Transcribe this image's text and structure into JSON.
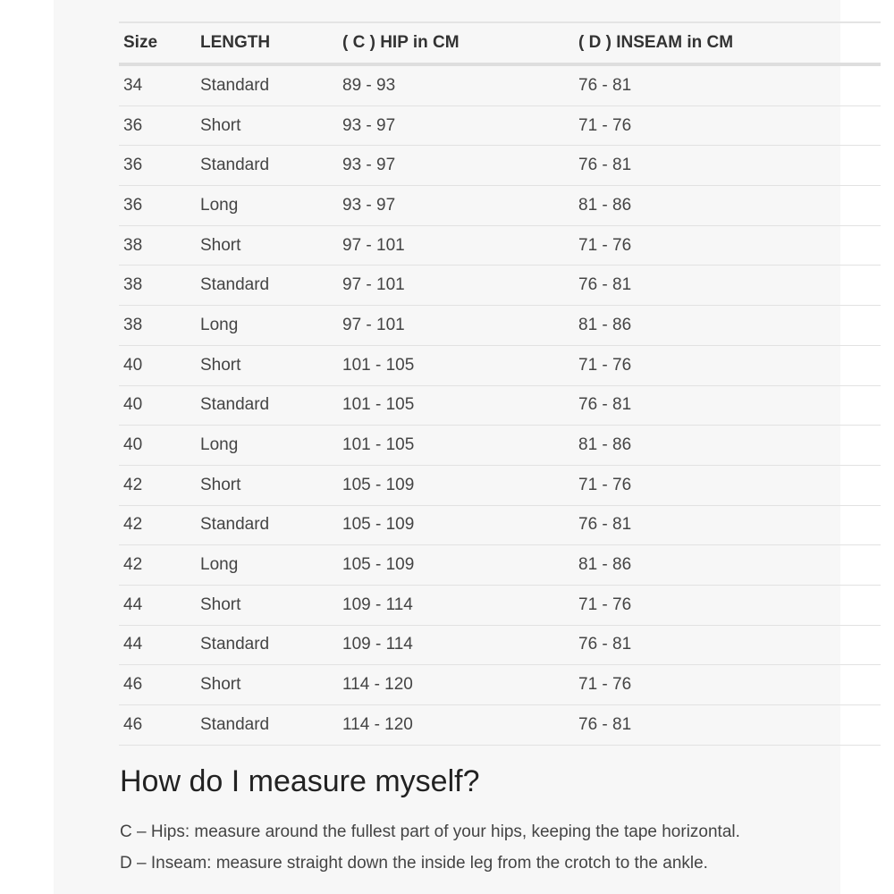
{
  "table": {
    "headers": [
      "Size",
      "LENGTH",
      "( C ) HIP in CM",
      "( D ) INSEAM in CM"
    ],
    "rows": [
      [
        "34",
        "Standard",
        "89 - 93",
        "76 - 81"
      ],
      [
        "36",
        "Short",
        "93 - 97",
        "71 - 76"
      ],
      [
        "36",
        "Standard",
        "93 - 97",
        "76 - 81"
      ],
      [
        "36",
        "Long",
        "93 - 97",
        "81 - 86"
      ],
      [
        "38",
        "Short",
        "97 - 101",
        "71 - 76"
      ],
      [
        "38",
        "Standard",
        "97 - 101",
        "76 - 81"
      ],
      [
        "38",
        "Long",
        "97 - 101",
        "81 - 86"
      ],
      [
        "40",
        "Short",
        "101 - 105",
        "71 - 76"
      ],
      [
        "40",
        "Standard",
        "101 - 105",
        "76 - 81"
      ],
      [
        "40",
        "Long",
        "101 - 105",
        "81 - 86"
      ],
      [
        "42",
        "Short",
        "105 - 109",
        "71 - 76"
      ],
      [
        "42",
        "Standard",
        "105 - 109",
        "76 - 81"
      ],
      [
        "42",
        "Long",
        "105 - 109",
        "81 - 86"
      ],
      [
        "44",
        "Short",
        "109 - 114",
        "71 - 76"
      ],
      [
        "44",
        "Standard",
        "109 - 114",
        "76 - 81"
      ],
      [
        "46",
        "Short",
        "114 - 120",
        "71 - 76"
      ],
      [
        "46",
        "Standard",
        "114 - 120",
        "76 - 81"
      ]
    ]
  },
  "measure": {
    "heading": "How do I measure myself?",
    "hips": "C – Hips: measure around the fullest part of your hips, keeping the tape horizontal.",
    "inseam": "D – Inseam: measure straight down the inside leg from the crotch to the ankle."
  }
}
